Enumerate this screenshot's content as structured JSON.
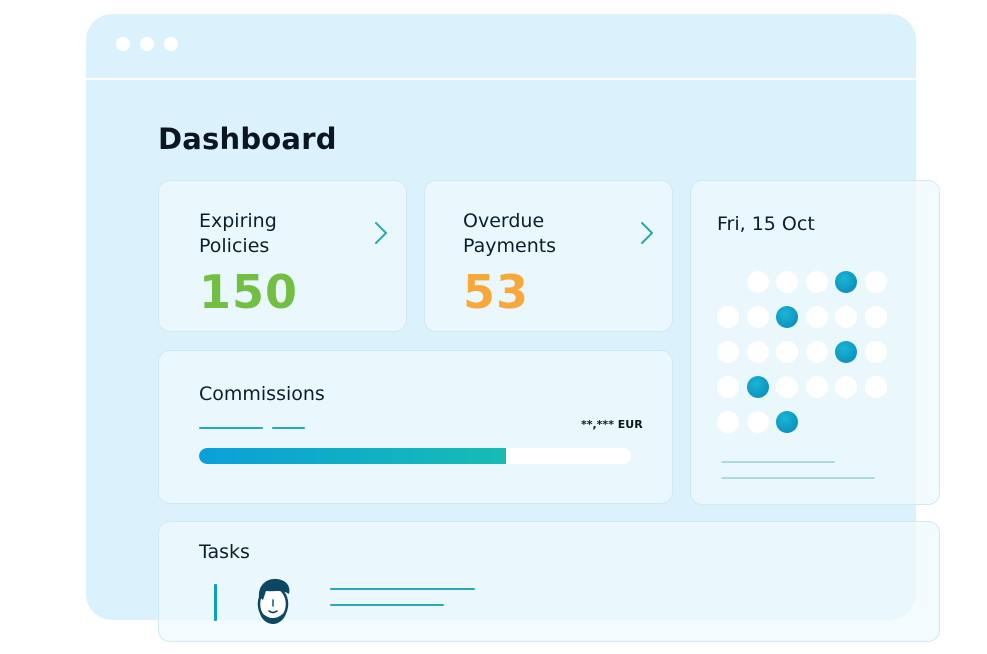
{
  "window": {
    "controls": [
      "close",
      "minimize",
      "maximize"
    ]
  },
  "page": {
    "title": "Dashboard"
  },
  "cards": {
    "expiring": {
      "label": "Expiring\nPolicies",
      "value": "150",
      "color": "#72bf44",
      "action_icon": "chevron-right-icon"
    },
    "overdue": {
      "label": "Overdue\nPayments",
      "value": "53",
      "color": "#f7a83b",
      "action_icon": "chevron-right-icon"
    },
    "commissions": {
      "label": "Commissions",
      "amount": "**,*** EUR",
      "progress": 0.71
    },
    "calendar": {
      "date": "Fri, 15 Oct",
      "rows": [
        [
          null,
          false,
          false,
          false,
          true,
          false
        ],
        [
          false,
          false,
          true,
          false,
          false,
          false
        ],
        [
          false,
          false,
          false,
          false,
          true,
          false
        ],
        [
          false,
          true,
          false,
          false,
          false,
          false
        ],
        [
          false,
          false,
          true
        ]
      ]
    },
    "tasks": {
      "label": "Tasks",
      "avatar_icon": "user-avatar-icon"
    }
  },
  "colors": {
    "accent": "#0aa0d8",
    "accent_teal": "#16bcb4",
    "window_bg": "#dbf2fc"
  }
}
